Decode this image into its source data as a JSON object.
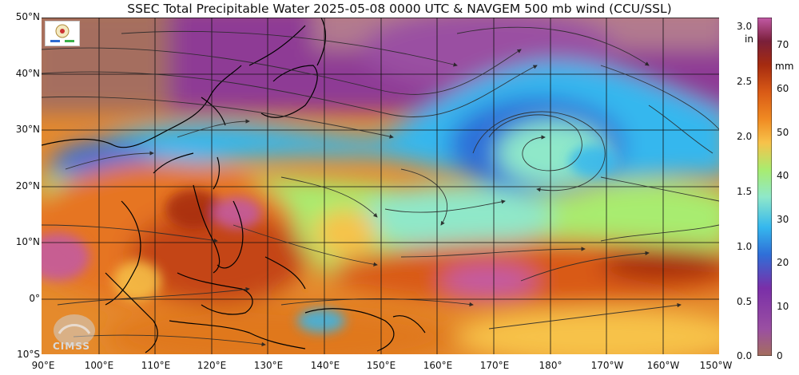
{
  "title": "SSEC Total Precipitable Water  2025-05-08 0000 UTC & NAVGEM 500 mb wind (CCU/SSL)",
  "axes": {
    "lat_labels": [
      "50°N",
      "40°N",
      "30°N",
      "20°N",
      "10°N",
      "0°",
      "10°S"
    ],
    "lon_labels": [
      "90°E",
      "100°E",
      "110°E",
      "120°E",
      "130°E",
      "140°E",
      "150°E",
      "160°E",
      "170°E",
      "180°",
      "170°W",
      "160°W",
      "150°W"
    ]
  },
  "colorbar": {
    "unit_in": "in",
    "unit_mm": "mm",
    "in_ticks": [
      "3.0",
      "2.5",
      "2.0",
      "1.5",
      "1.0",
      "0.5",
      "0.0"
    ],
    "mm_ticks": [
      "70",
      "60",
      "50",
      "40",
      "30",
      "20",
      "10",
      "0"
    ],
    "colors": [
      "#a56e5e",
      "#8e3a95",
      "#7a2fa8",
      "#2f6fd8",
      "#35b7ee",
      "#8fe8c9",
      "#a8ec70",
      "#f7c24a",
      "#f08a22",
      "#d95a16",
      "#a52b10",
      "#7a1f3a",
      "#c25aa6"
    ]
  },
  "logos": {
    "cimss": "CIMSS"
  }
}
